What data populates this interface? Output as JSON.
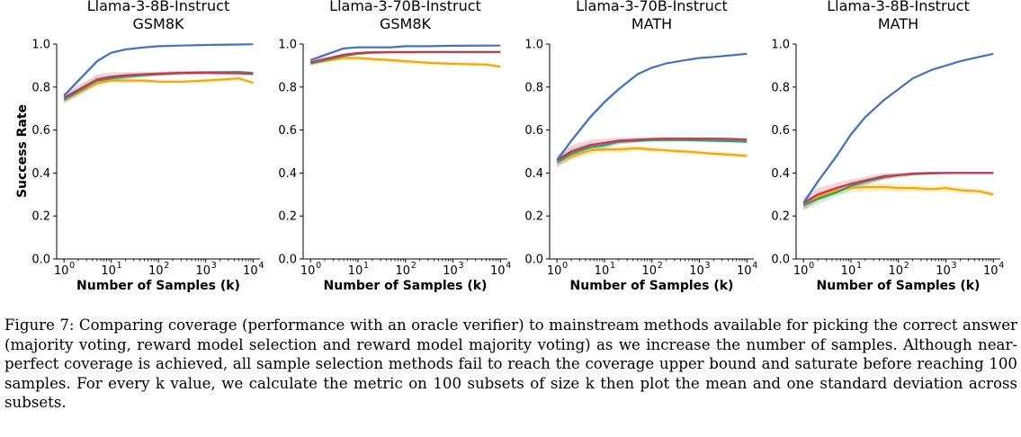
{
  "colors": {
    "coverage": "#4472c4",
    "majority": "#f5a800",
    "reward_model": "#2e9e6e",
    "reward_majority": "#c9364f"
  },
  "shared": {
    "ylabel": "Success Rate",
    "xlabel": "Number of Samples (k)",
    "yticks": [
      "0.0",
      "0.2",
      "0.4",
      "0.6",
      "0.8",
      "1.0"
    ],
    "xticks": [
      "10",
      "10",
      "10",
      "10",
      "10"
    ],
    "xtick_exponents": [
      "0",
      "1",
      "2",
      "3",
      "4"
    ]
  },
  "chart_data": [
    {
      "type": "line",
      "title": [
        "Llama-3-8B-Instruct",
        "GSM8K"
      ],
      "xlabel": "Number of Samples (k)",
      "ylabel": "Success Rate",
      "xscale": "log",
      "xlim": [
        0.7,
        14000
      ],
      "ylim": [
        0,
        1
      ],
      "x": [
        1,
        5,
        10,
        20,
        50,
        100,
        300,
        1000,
        5000,
        10000
      ],
      "series": [
        {
          "name": "coverage",
          "values": [
            0.76,
            0.92,
            0.96,
            0.975,
            0.985,
            0.99,
            0.993,
            0.996,
            0.998,
            0.999
          ],
          "std": [
            0.01,
            0.01,
            0.005,
            0.004,
            0.003,
            0.002,
            0.002,
            0.001,
            0.001,
            0.001
          ]
        },
        {
          "name": "majority",
          "values": [
            0.74,
            0.82,
            0.83,
            0.83,
            0.83,
            0.825,
            0.825,
            0.83,
            0.84,
            0.82
          ],
          "std": [
            0.015,
            0.015,
            0.01,
            0.01,
            0.01,
            0.008,
            0.008,
            0.008,
            0.008,
            0.008
          ]
        },
        {
          "name": "reward_model",
          "values": [
            0.74,
            0.83,
            0.84,
            0.848,
            0.855,
            0.86,
            0.865,
            0.868,
            0.87,
            0.865
          ],
          "std": [
            0.02,
            0.02,
            0.015,
            0.012,
            0.01,
            0.01,
            0.008,
            0.008,
            0.008,
            0.008
          ]
        },
        {
          "name": "reward_majority",
          "values": [
            0.75,
            0.835,
            0.848,
            0.855,
            0.86,
            0.862,
            0.866,
            0.866,
            0.864,
            0.862
          ],
          "std": [
            0.02,
            0.025,
            0.02,
            0.015,
            0.012,
            0.01,
            0.01,
            0.008,
            0.008,
            0.008
          ]
        }
      ]
    },
    {
      "type": "line",
      "title": [
        "Llama-3-70B-Instruct",
        "GSM8K"
      ],
      "xlabel": "Number of Samples (k)",
      "ylabel": "Success Rate",
      "xscale": "log",
      "xlim": [
        0.7,
        14000
      ],
      "ylim": [
        0,
        1
      ],
      "x": [
        1,
        5,
        10,
        20,
        50,
        100,
        300,
        1000,
        5000,
        10000
      ],
      "series": [
        {
          "name": "coverage",
          "values": [
            0.925,
            0.98,
            0.985,
            0.985,
            0.985,
            0.99,
            0.99,
            0.992,
            0.993,
            0.993
          ],
          "std": [
            0.008,
            0.005,
            0.003,
            0.003,
            0.002,
            0.002,
            0.002,
            0.001,
            0.001,
            0.001
          ]
        },
        {
          "name": "majority",
          "values": [
            0.91,
            0.935,
            0.935,
            0.93,
            0.925,
            0.92,
            0.913,
            0.908,
            0.905,
            0.895
          ],
          "std": [
            0.01,
            0.01,
            0.01,
            0.01,
            0.01,
            0.01,
            0.008,
            0.008,
            0.008,
            0.008
          ]
        },
        {
          "name": "reward_model",
          "values": [
            0.91,
            0.945,
            0.955,
            0.96,
            0.962,
            0.962,
            0.963,
            0.963,
            0.963,
            0.963
          ],
          "std": [
            0.01,
            0.008,
            0.006,
            0.005,
            0.005,
            0.004,
            0.004,
            0.003,
            0.003,
            0.003
          ]
        },
        {
          "name": "reward_majority",
          "values": [
            0.915,
            0.95,
            0.958,
            0.962,
            0.963,
            0.963,
            0.963,
            0.963,
            0.963,
            0.963
          ],
          "std": [
            0.01,
            0.008,
            0.006,
            0.005,
            0.004,
            0.004,
            0.003,
            0.003,
            0.003,
            0.003
          ]
        }
      ]
    },
    {
      "type": "line",
      "title": [
        "Llama-3-70B-Instruct",
        "MATH"
      ],
      "xlabel": "Number of Samples (k)",
      "ylabel": "Success Rate",
      "xscale": "log",
      "xlim": [
        0.7,
        14000
      ],
      "ylim": [
        0,
        1
      ],
      "x": [
        1,
        2,
        5,
        10,
        20,
        50,
        100,
        200,
        500,
        1000,
        2000,
        5000,
        10000
      ],
      "series": [
        {
          "name": "coverage",
          "values": [
            0.46,
            0.55,
            0.66,
            0.73,
            0.79,
            0.86,
            0.89,
            0.91,
            0.925,
            0.935,
            0.94,
            0.948,
            0.955
          ],
          "std": [
            0.01,
            0.01,
            0.01,
            0.01,
            0.008,
            0.006,
            0.005,
            0.004,
            0.003,
            0.003,
            0.002,
            0.002,
            0.002
          ]
        },
        {
          "name": "majority",
          "values": [
            0.45,
            0.48,
            0.505,
            0.51,
            0.51,
            0.515,
            0.51,
            0.505,
            0.5,
            0.495,
            0.49,
            0.485,
            0.48
          ],
          "std": [
            0.02,
            0.02,
            0.02,
            0.015,
            0.015,
            0.012,
            0.012,
            0.01,
            0.01,
            0.01,
            0.01,
            0.01,
            0.01
          ]
        },
        {
          "name": "reward_model",
          "values": [
            0.45,
            0.49,
            0.52,
            0.53,
            0.545,
            0.55,
            0.553,
            0.553,
            0.553,
            0.552,
            0.55,
            0.548,
            0.545
          ],
          "std": [
            0.025,
            0.025,
            0.02,
            0.015,
            0.012,
            0.01,
            0.01,
            0.008,
            0.008,
            0.008,
            0.008,
            0.008,
            0.008
          ]
        },
        {
          "name": "reward_majority",
          "values": [
            0.46,
            0.5,
            0.53,
            0.54,
            0.55,
            0.555,
            0.558,
            0.56,
            0.56,
            0.56,
            0.56,
            0.558,
            0.555
          ],
          "std": [
            0.025,
            0.03,
            0.025,
            0.02,
            0.015,
            0.012,
            0.01,
            0.01,
            0.008,
            0.008,
            0.008,
            0.008,
            0.008
          ]
        }
      ]
    },
    {
      "type": "line",
      "title": [
        "Llama-3-8B-Instruct",
        "MATH"
      ],
      "xlabel": "Number of Samples (k)",
      "ylabel": "Success Rate",
      "xscale": "log",
      "xlim": [
        0.7,
        14000
      ],
      "ylim": [
        0,
        1
      ],
      "x": [
        1,
        2,
        5,
        10,
        20,
        50,
        100,
        200,
        500,
        1000,
        2000,
        5000,
        10000
      ],
      "series": [
        {
          "name": "coverage",
          "values": [
            0.26,
            0.36,
            0.48,
            0.58,
            0.66,
            0.74,
            0.79,
            0.84,
            0.88,
            0.9,
            0.92,
            0.94,
            0.955
          ],
          "std": [
            0.01,
            0.01,
            0.01,
            0.01,
            0.008,
            0.006,
            0.005,
            0.004,
            0.003,
            0.003,
            0.002,
            0.002,
            0.002
          ]
        },
        {
          "name": "majority",
          "values": [
            0.25,
            0.29,
            0.32,
            0.33,
            0.335,
            0.335,
            0.33,
            0.33,
            0.325,
            0.33,
            0.32,
            0.315,
            0.3
          ],
          "std": [
            0.02,
            0.02,
            0.02,
            0.02,
            0.02,
            0.018,
            0.018,
            0.015,
            0.015,
            0.015,
            0.012,
            0.012,
            0.01
          ]
        },
        {
          "name": "reward_model",
          "values": [
            0.25,
            0.28,
            0.31,
            0.34,
            0.36,
            0.38,
            0.39,
            0.395,
            0.398,
            0.4,
            0.4,
            0.4,
            0.4
          ],
          "std": [
            0.025,
            0.025,
            0.02,
            0.02,
            0.015,
            0.012,
            0.01,
            0.008,
            0.006,
            0.005,
            0.004,
            0.003,
            0.003
          ]
        },
        {
          "name": "reward_majority",
          "values": [
            0.26,
            0.3,
            0.33,
            0.35,
            0.365,
            0.385,
            0.39,
            0.397,
            0.4,
            0.4,
            0.4,
            0.4,
            0.4
          ],
          "std": [
            0.03,
            0.03,
            0.025,
            0.02,
            0.018,
            0.015,
            0.01,
            0.008,
            0.006,
            0.005,
            0.004,
            0.003,
            0.003
          ]
        }
      ]
    }
  ],
  "caption": "Figure 7: Comparing coverage (performance with an oracle verifier) to mainstream methods available for picking the correct answer (majority voting, reward model selection and reward model majority voting) as we increase the number of samples. Although near-perfect coverage is achieved, all sample selection methods fail to reach the coverage upper bound and saturate before reaching 100 samples. For every k value, we calculate the metric on 100 subsets of size k then plot the mean and one standard deviation across subsets."
}
